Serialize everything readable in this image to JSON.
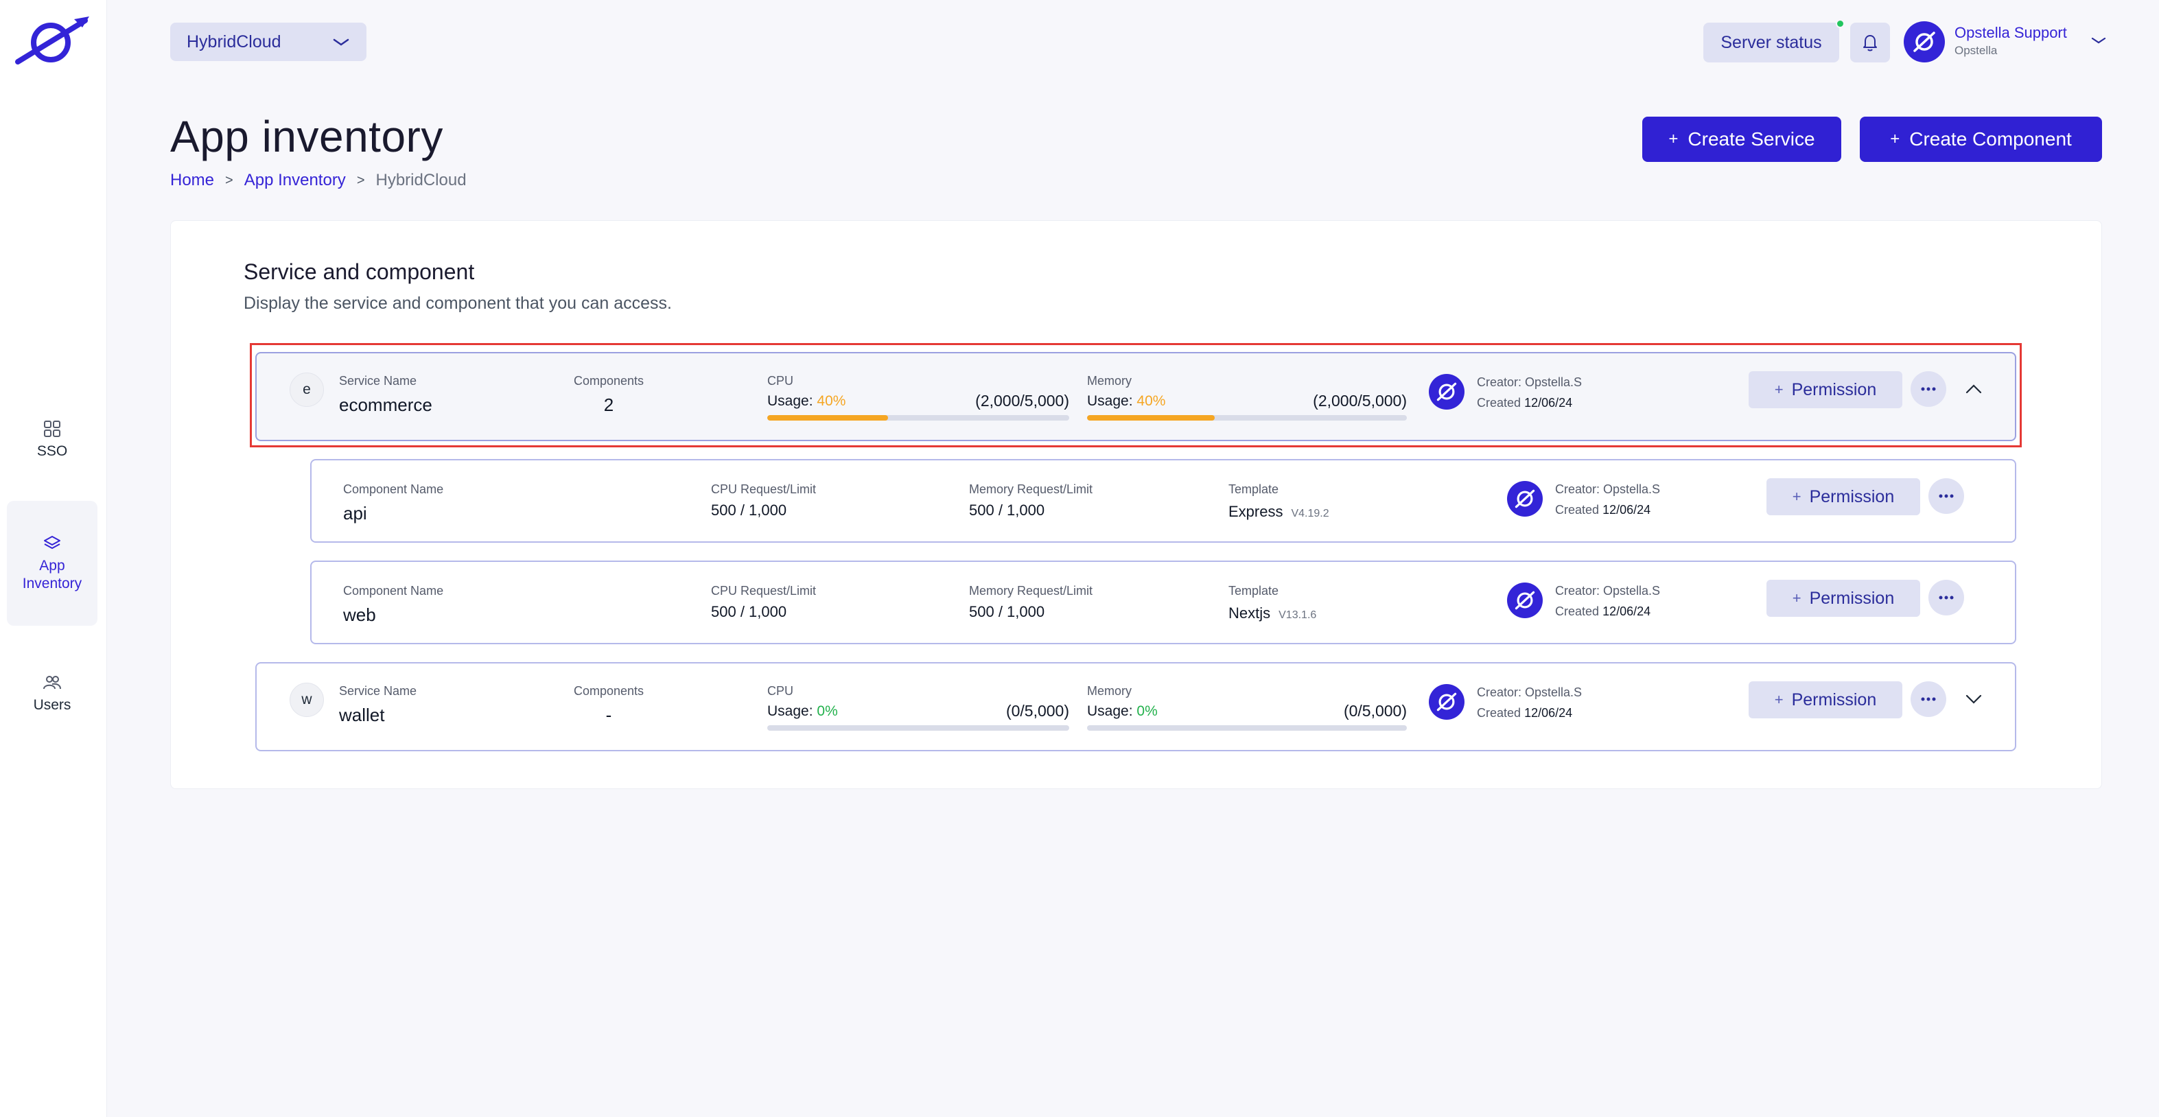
{
  "sidebar": {
    "items": [
      {
        "label": "SSO",
        "icon": "grid-icon"
      },
      {
        "label": "App\nInventory",
        "icon": "layers-icon"
      },
      {
        "label": "Users",
        "icon": "users-icon"
      }
    ]
  },
  "header": {
    "cloud_select": "HybridCloud",
    "server_status": "Server status",
    "user_name": "Opstella Support",
    "user_org": "Opstella"
  },
  "page": {
    "title": "App inventory",
    "breadcrumb": [
      "Home",
      "App Inventory",
      "HybridCloud"
    ],
    "breadcrumb_sep": ">",
    "create_service": "Create Service",
    "create_component": "Create Component",
    "plus": "+"
  },
  "card": {
    "title": "Service and component",
    "subtitle": "Display the service and component that you can access."
  },
  "labels": {
    "service_name": "Service Name",
    "components": "Components",
    "cpu": "CPU",
    "memory": "Memory",
    "usage": "Usage:",
    "component_name": "Component Name",
    "cpu_req": "CPU Request/Limit",
    "mem_req": "Memory Request/Limit",
    "template": "Template",
    "creator": "Creator: Opstella.S",
    "created": "Created",
    "permission": "Permission"
  },
  "services": [
    {
      "letter": "e",
      "name": "ecommerce",
      "components": "2",
      "cpu_pct": "40%",
      "cpu_ratio": "(2,000/5,000)",
      "cpu_fill": 0.4,
      "mem_pct": "40%",
      "mem_ratio": "(2,000/5,000)",
      "mem_fill": 0.4,
      "created": "12/06/24",
      "expanded": true,
      "pct_color": "#f5a623"
    },
    {
      "letter": "w",
      "name": "wallet",
      "components": "-",
      "cpu_pct": "0%",
      "cpu_ratio": "(0/5,000)",
      "cpu_fill": 0,
      "mem_pct": "0%",
      "mem_ratio": "(0/5,000)",
      "mem_fill": 0,
      "created": "12/06/24",
      "expanded": false,
      "pct_color": "#22b14c"
    }
  ],
  "components": [
    {
      "name": "api",
      "cpu": "500 / 1,000",
      "mem": "500 / 1,000",
      "template": "Express",
      "version": "V4.19.2",
      "created": "12/06/24"
    },
    {
      "name": "web",
      "cpu": "500 / 1,000",
      "mem": "500 / 1,000",
      "template": "Nextjs",
      "version": "V13.1.6",
      "created": "12/06/24"
    }
  ],
  "colors": {
    "accent": "#3021d3",
    "highlight": "#e53935",
    "usage_orange": "#f5a623",
    "usage_green": "#22b14c"
  }
}
